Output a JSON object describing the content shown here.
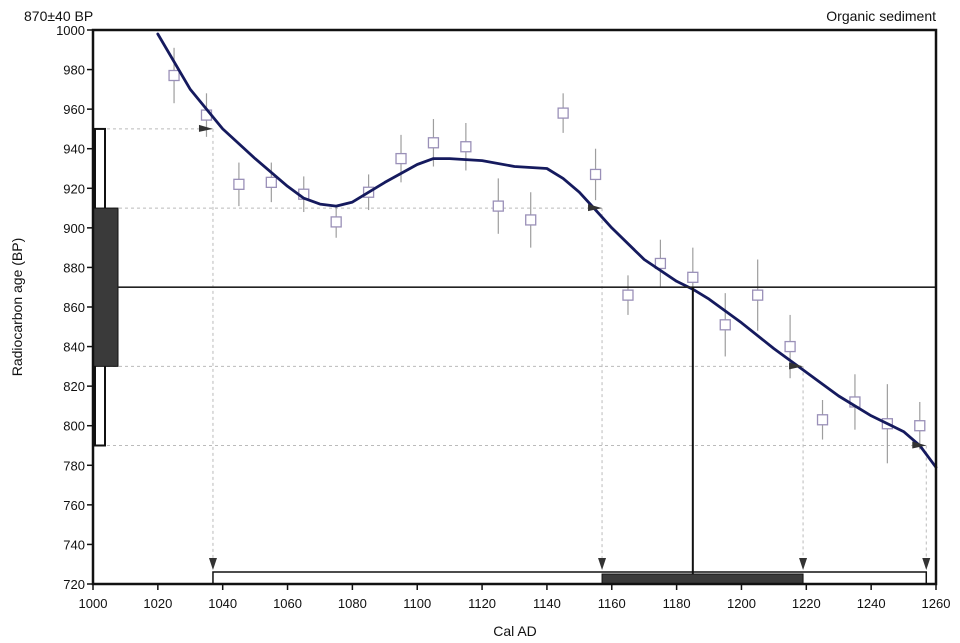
{
  "chart_data": {
    "type": "line",
    "top_left_label": "870±40 BP",
    "top_right_label": "Organic sediment",
    "xlabel": "Cal AD",
    "ylabel": "Radiocarbon age (BP)",
    "xlim": [
      1000,
      1260
    ],
    "ylim": [
      720,
      1000
    ],
    "xticks": [
      1000,
      1020,
      1040,
      1060,
      1080,
      1100,
      1120,
      1140,
      1160,
      1180,
      1200,
      1220,
      1240,
      1260
    ],
    "yticks": [
      720,
      740,
      760,
      780,
      800,
      820,
      840,
      860,
      880,
      900,
      920,
      940,
      960,
      980,
      1000
    ],
    "calibration_curve": {
      "x": [
        1020,
        1030,
        1040,
        1050,
        1060,
        1065,
        1070,
        1075,
        1080,
        1090,
        1100,
        1105,
        1110,
        1120,
        1130,
        1140,
        1145,
        1150,
        1155,
        1160,
        1170,
        1180,
        1185,
        1190,
        1200,
        1210,
        1220,
        1230,
        1240,
        1250,
        1255,
        1260
      ],
      "y": [
        998,
        970,
        950,
        935,
        921,
        915,
        912,
        911,
        913,
        923,
        932,
        935,
        935,
        934,
        931,
        930,
        925,
        918,
        909,
        900,
        884,
        873,
        869,
        864,
        852,
        839,
        827,
        815,
        805,
        797,
        790,
        779
      ]
    },
    "measurements": [
      {
        "x": 1025,
        "y": 977,
        "err": 14
      },
      {
        "x": 1035,
        "y": 957,
        "err": 11
      },
      {
        "x": 1045,
        "y": 922,
        "err": 11
      },
      {
        "x": 1055,
        "y": 923,
        "err": 10
      },
      {
        "x": 1065,
        "y": 917,
        "err": 9
      },
      {
        "x": 1075,
        "y": 903,
        "err": 8
      },
      {
        "x": 1085,
        "y": 918,
        "err": 9
      },
      {
        "x": 1095,
        "y": 935,
        "err": 12
      },
      {
        "x": 1105,
        "y": 943,
        "err": 12
      },
      {
        "x": 1115,
        "y": 941,
        "err": 12
      },
      {
        "x": 1125,
        "y": 911,
        "err": 14
      },
      {
        "x": 1135,
        "y": 904,
        "err": 14
      },
      {
        "x": 1145,
        "y": 958,
        "err": 10
      },
      {
        "x": 1155,
        "y": 927,
        "err": 13
      },
      {
        "x": 1165,
        "y": 866,
        "err": 10
      },
      {
        "x": 1175,
        "y": 882,
        "err": 12
      },
      {
        "x": 1185,
        "y": 875,
        "err": 15
      },
      {
        "x": 1195,
        "y": 851,
        "err": 16
      },
      {
        "x": 1205,
        "y": 866,
        "err": 18
      },
      {
        "x": 1215,
        "y": 840,
        "err": 16
      },
      {
        "x": 1225,
        "y": 803,
        "err": 10
      },
      {
        "x": 1235,
        "y": 812,
        "err": 14
      },
      {
        "x": 1245,
        "y": 801,
        "err": 20
      },
      {
        "x": 1255,
        "y": 800,
        "err": 12
      }
    ],
    "sample_age": {
      "value": 870,
      "sigma1": [
        830,
        910
      ],
      "sigma2": [
        790,
        950
      ]
    },
    "calibrated_median": 1185,
    "calibrated_range_1sigma": [
      1157,
      1219
    ],
    "calibrated_range_2sigma": [
      1037,
      1257
    ],
    "intercept_markers": [
      {
        "x": 1037,
        "y": 950
      },
      {
        "x": 1157,
        "y": 910
      },
      {
        "x": 1219,
        "y": 830
      },
      {
        "x": 1257,
        "y": 790
      }
    ],
    "colors": {
      "curve": "#151a5e",
      "measurement": "#9a90b8",
      "frame": "#111111",
      "band_fill": "#3a3a3a",
      "guide": "#bbbbbb"
    },
    "grid": false,
    "legend": "none"
  }
}
